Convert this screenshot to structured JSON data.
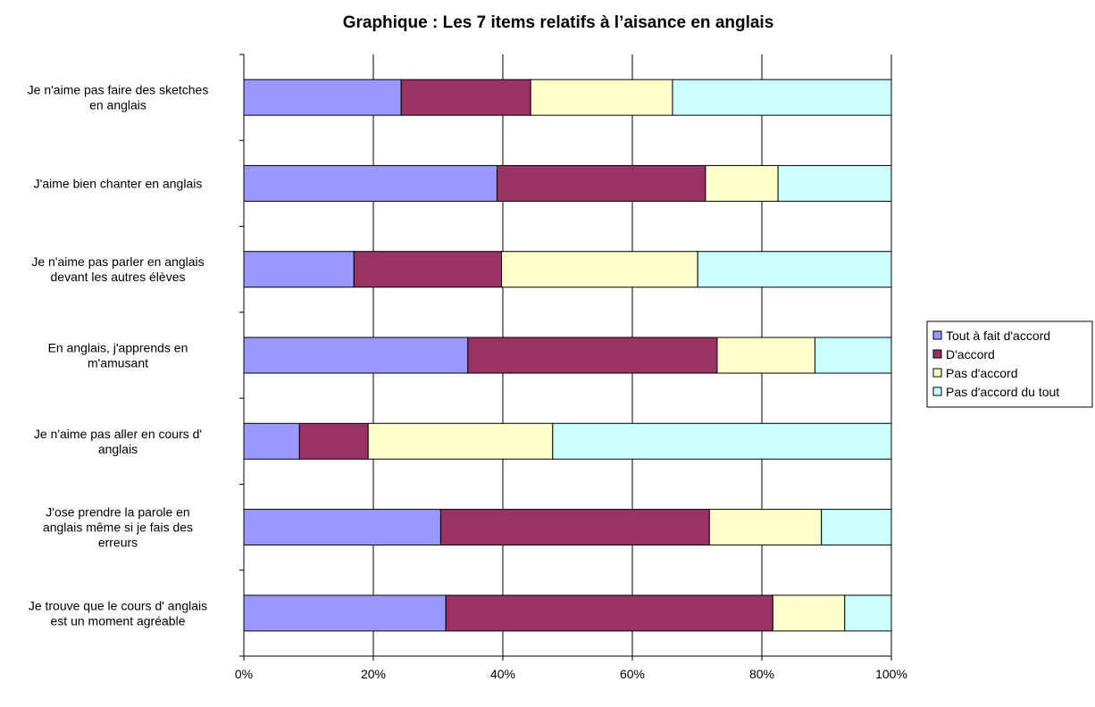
{
  "chart_data": {
    "type": "bar",
    "orientation": "horizontal",
    "stacked": "percent",
    "title": "Graphique : Les 7 items relatifs à l’aisance en anglais",
    "categories": [
      [
        "Je n'aime pas faire des sketches",
        "en anglais"
      ],
      [
        "J'aime bien chanter en anglais"
      ],
      [
        "Je n'aime pas parler en anglais",
        "devant les autres élèves"
      ],
      [
        "En anglais, j'apprends en",
        "m'amusant"
      ],
      [
        "Je n'aime pas aller en cours d'",
        "anglais"
      ],
      [
        "J'ose prendre la parole en",
        "anglais même si je fais des",
        "erreurs"
      ],
      [
        "Je trouve que le cours d' anglais",
        "est un moment agréable"
      ]
    ],
    "series": [
      {
        "name": "Tout à fait d'accord",
        "color": "#9999ff",
        "values": [
          24.3,
          39.1,
          17.0,
          34.6,
          8.6,
          30.4,
          31.2
        ]
      },
      {
        "name": "D'accord",
        "color": "#993366",
        "values": [
          20.0,
          32.2,
          22.8,
          38.5,
          10.6,
          41.5,
          50.5
        ]
      },
      {
        "name": "Pas d'accord",
        "color": "#ffffcc",
        "values": [
          21.9,
          11.2,
          30.3,
          15.1,
          28.5,
          17.3,
          11.1
        ]
      },
      {
        "name": "Pas d'accord du tout",
        "color": "#ccffff",
        "values": [
          33.8,
          17.5,
          29.9,
          11.8,
          52.3,
          10.8,
          7.2
        ]
      }
    ],
    "xlim": [
      0,
      100
    ],
    "xticks": [
      "0%",
      "20%",
      "40%",
      "60%",
      "80%",
      "100%"
    ],
    "grid": "vertical",
    "legend_position": "right"
  }
}
